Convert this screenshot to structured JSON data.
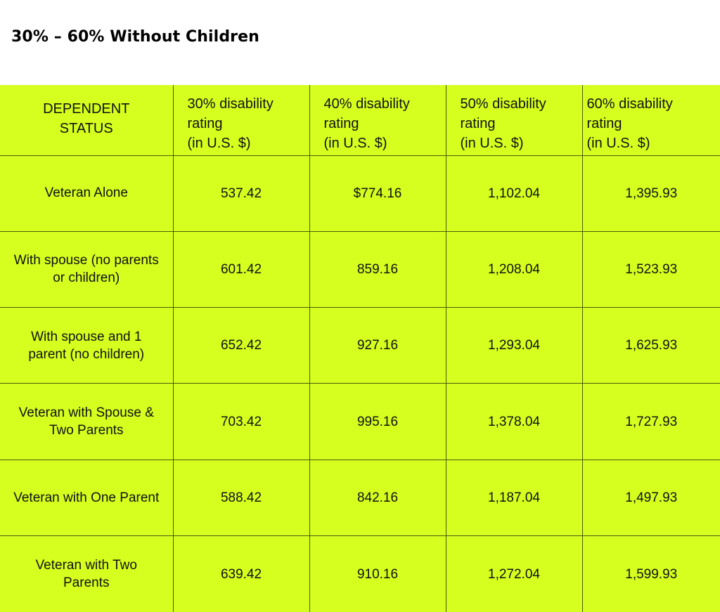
{
  "title": "30% – 60% Without Children",
  "table": {
    "columns": [
      {
        "lines": [
          "DEPENDENT",
          "STATUS"
        ]
      },
      {
        "lines": [
          "30% disability",
          "rating",
          "(in U.S. $)"
        ]
      },
      {
        "lines": [
          "40% disability",
          "rating",
          "(in U.S. $)"
        ]
      },
      {
        "lines": [
          "50% disability",
          "rating",
          "(in U.S. $)"
        ]
      },
      {
        "lines": [
          "60% disability",
          "rating",
          "(in U.S. $)"
        ]
      }
    ],
    "rows": [
      {
        "status": "Veteran Alone",
        "values": [
          "537.42",
          "$774.16",
          "1,102.04",
          "1,395.93"
        ]
      },
      {
        "status": "With spouse (no parents or children)",
        "values": [
          "601.42",
          "859.16",
          "1,208.04",
          "1,523.93"
        ]
      },
      {
        "status": "With spouse and 1 parent (no children)",
        "values": [
          "652.42",
          "927.16",
          "1,293.04",
          "1,625.93"
        ]
      },
      {
        "status": "Veteran with Spouse & Two Parents",
        "values": [
          "703.42",
          "995.16",
          "1,378.04",
          "1,727.93"
        ]
      },
      {
        "status": "Veteran with One Parent",
        "values": [
          "588.42",
          "842.16",
          "1,187.04",
          "1,497.93"
        ]
      },
      {
        "status": "Veteran with Two Parents",
        "values": [
          "639.42",
          "910.16",
          "1,272.04",
          "1,599.93"
        ]
      }
    ]
  },
  "colors": {
    "table_background": "#d6ff1f",
    "grid_line": "#4a5a10",
    "text": "#111111"
  }
}
